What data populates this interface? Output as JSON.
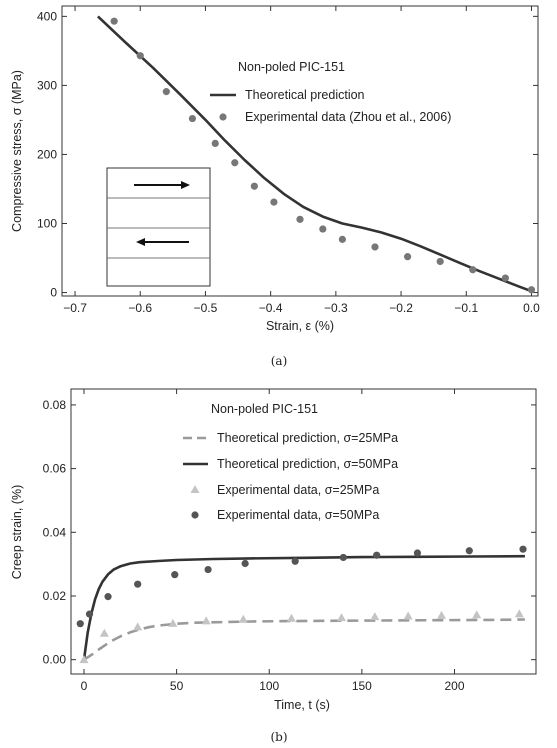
{
  "chart_data": [
    {
      "type": "line",
      "caption": "(a)",
      "xlabel": "Strain, ε (%)",
      "ylabel": "Compressive stress, σ (MPa)",
      "xlim": [
        -0.72,
        0.01
      ],
      "ylim": [
        -5,
        415
      ],
      "xticks": [
        -0.7,
        -0.6,
        -0.5,
        -0.4,
        -0.3,
        -0.2,
        -0.1,
        0.0
      ],
      "xtick_labels": [
        "−0.7",
        "−0.6",
        "−0.5",
        "−0.4",
        "−0.3",
        "−0.2",
        "−0.1",
        "0.0"
      ],
      "yticks": [
        0,
        100,
        200,
        300,
        400
      ],
      "ytick_labels": [
        "0",
        "100",
        "200",
        "300",
        "400"
      ],
      "legend_title": "Non-poled PIC-151",
      "legend_position": "top-right",
      "series": [
        {
          "name": "Theoretical prediction",
          "kind": "line",
          "style": "solid",
          "color": "#333333",
          "x": [
            -0.665,
            -0.62,
            -0.58,
            -0.54,
            -0.5,
            -0.47,
            -0.44,
            -0.41,
            -0.38,
            -0.35,
            -0.32,
            -0.29,
            -0.26,
            -0.23,
            -0.2,
            -0.17,
            -0.14,
            -0.11,
            -0.08,
            -0.05,
            -0.02,
            0.0
          ],
          "y": [
            400,
            360,
            325,
            288,
            250,
            220,
            192,
            166,
            143,
            124,
            110,
            100,
            94,
            87,
            78,
            67,
            55,
            43,
            31,
            20,
            9,
            2
          ]
        },
        {
          "name": "Experimental data (Zhou et al., 2006)",
          "kind": "scatter",
          "marker": "circle",
          "color": "#777777",
          "x": [
            -0.64,
            -0.6,
            -0.56,
            -0.52,
            -0.485,
            -0.455,
            -0.425,
            -0.395,
            -0.355,
            -0.32,
            -0.29,
            -0.24,
            -0.19,
            -0.14,
            -0.09,
            -0.04,
            0.0
          ],
          "y": [
            393,
            343,
            291,
            252,
            216,
            188,
            154,
            131,
            106,
            92,
            77,
            66,
            52,
            45,
            33,
            21,
            4
          ]
        }
      ]
    },
    {
      "type": "line",
      "caption": "(b)",
      "xlabel": "Time, t (s)",
      "ylabel": "Creep strain, (%)",
      "xlim": [
        -7,
        244
      ],
      "ylim": [
        -0.0045,
        0.085
      ],
      "xticks": [
        0,
        50,
        100,
        150,
        200
      ],
      "xtick_labels": [
        "0",
        "50",
        "100",
        "150",
        "200"
      ],
      "yticks": [
        0.0,
        0.02,
        0.04,
        0.06,
        0.08
      ],
      "ytick_labels": [
        "0.00",
        "0.02",
        "0.04",
        "0.06",
        "0.08"
      ],
      "legend_title": "Non-poled PIC-151",
      "legend_position": "top-right",
      "series": [
        {
          "name": "Theoretical prediction, σ=25MPa",
          "kind": "line",
          "style": "dashed",
          "color": "#9a9a9a",
          "x": [
            0,
            4,
            8,
            12,
            16,
            20,
            25,
            30,
            35,
            40,
            50,
            60,
            75,
            90,
            110,
            130,
            160,
            190,
            220,
            238
          ],
          "y": [
            0.0,
            0.0015,
            0.0032,
            0.0048,
            0.0062,
            0.0074,
            0.0086,
            0.0095,
            0.0102,
            0.0107,
            0.0113,
            0.0116,
            0.0118,
            0.012,
            0.0121,
            0.0122,
            0.0123,
            0.0124,
            0.0125,
            0.0126
          ]
        },
        {
          "name": "Theoretical prediction, σ=50MPa",
          "kind": "line",
          "style": "solid",
          "color": "#333333",
          "x": [
            0,
            2,
            4,
            6,
            8,
            10,
            13,
            16,
            20,
            25,
            30,
            40,
            50,
            70,
            90,
            120,
            150,
            180,
            210,
            238
          ],
          "y": [
            0.0,
            0.0085,
            0.0145,
            0.019,
            0.0222,
            0.0245,
            0.0268,
            0.0283,
            0.0294,
            0.0302,
            0.0306,
            0.031,
            0.0313,
            0.0316,
            0.0318,
            0.032,
            0.0322,
            0.0323,
            0.0324,
            0.0325
          ]
        },
        {
          "name": "Experimental data, σ=25MPa",
          "kind": "scatter",
          "marker": "triangle",
          "color": "#c4c4c4",
          "x": [
            0,
            11,
            29,
            48,
            66,
            86,
            112,
            139,
            157,
            175,
            193,
            212,
            235
          ],
          "y": [
            0.0,
            0.0083,
            0.0103,
            0.0114,
            0.0122,
            0.0127,
            0.013,
            0.0132,
            0.0135,
            0.0137,
            0.0139,
            0.0141,
            0.0144
          ]
        },
        {
          "name": "Experimental data, σ=50MPa",
          "kind": "scatter",
          "marker": "circle",
          "color": "#555555",
          "x": [
            -2,
            3,
            13,
            29,
            49,
            67,
            87,
            114,
            140,
            158,
            180,
            208,
            237
          ],
          "y": [
            0.0113,
            0.0143,
            0.0198,
            0.0237,
            0.0267,
            0.0283,
            0.0302,
            0.0309,
            0.0321,
            0.0328,
            0.0335,
            0.0342,
            0.0347
          ]
        }
      ]
    }
  ]
}
